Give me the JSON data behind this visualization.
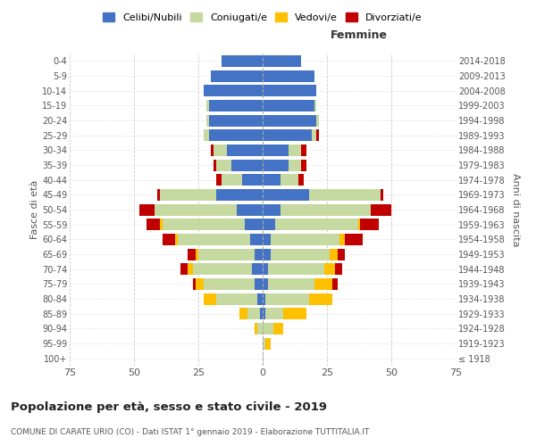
{
  "age_groups": [
    "100+",
    "95-99",
    "90-94",
    "85-89",
    "80-84",
    "75-79",
    "70-74",
    "65-69",
    "60-64",
    "55-59",
    "50-54",
    "45-49",
    "40-44",
    "35-39",
    "30-34",
    "25-29",
    "20-24",
    "15-19",
    "10-14",
    "5-9",
    "0-4"
  ],
  "birth_years": [
    "≤ 1918",
    "1919-1923",
    "1924-1928",
    "1929-1933",
    "1934-1938",
    "1939-1943",
    "1944-1948",
    "1949-1953",
    "1954-1958",
    "1959-1963",
    "1964-1968",
    "1969-1973",
    "1974-1978",
    "1979-1983",
    "1984-1988",
    "1989-1993",
    "1994-1998",
    "1999-2003",
    "2004-2008",
    "2009-2013",
    "2014-2018"
  ],
  "males": {
    "celibi": [
      0,
      0,
      0,
      1,
      2,
      3,
      4,
      3,
      5,
      7,
      10,
      18,
      8,
      12,
      14,
      21,
      21,
      21,
      23,
      20,
      16
    ],
    "coniugati": [
      0,
      0,
      2,
      5,
      16,
      20,
      23,
      22,
      28,
      32,
      32,
      22,
      8,
      6,
      5,
      2,
      1,
      1,
      0,
      0,
      0
    ],
    "vedovi": [
      0,
      0,
      1,
      3,
      5,
      3,
      2,
      1,
      1,
      1,
      0,
      0,
      0,
      0,
      0,
      0,
      0,
      0,
      0,
      0,
      0
    ],
    "divorziati": [
      0,
      0,
      0,
      0,
      0,
      1,
      3,
      3,
      5,
      5,
      6,
      1,
      2,
      1,
      1,
      0,
      0,
      0,
      0,
      0,
      0
    ]
  },
  "females": {
    "nubili": [
      0,
      0,
      0,
      1,
      1,
      2,
      2,
      3,
      3,
      5,
      7,
      18,
      7,
      10,
      10,
      19,
      21,
      20,
      21,
      20,
      15
    ],
    "coniugate": [
      0,
      1,
      4,
      7,
      17,
      18,
      22,
      23,
      27,
      32,
      35,
      28,
      7,
      5,
      5,
      2,
      1,
      1,
      0,
      0,
      0
    ],
    "vedove": [
      0,
      2,
      4,
      9,
      9,
      7,
      4,
      3,
      2,
      1,
      0,
      0,
      0,
      0,
      0,
      0,
      0,
      0,
      0,
      0,
      0
    ],
    "divorziate": [
      0,
      0,
      0,
      0,
      0,
      2,
      3,
      3,
      7,
      7,
      8,
      1,
      2,
      2,
      2,
      1,
      0,
      0,
      0,
      0,
      0
    ]
  },
  "colors": {
    "celibi": "#4472C4",
    "coniugati": "#c5d9a0",
    "vedovi": "#ffc000",
    "divorziati": "#c00000"
  },
  "xlim": 75,
  "title": "Popolazione per età, sesso e stato civile - 2019",
  "subtitle": "COMUNE DI CARATE URIO (CO) - Dati ISTAT 1° gennaio 2019 - Elaborazione TUTTITALIA.IT",
  "xlabel_right": "Femmine",
  "ylabel_left": "Fasce di età",
  "ylabel_right": "Anni di nascita",
  "legend_labels": [
    "Celibi/Nubili",
    "Coniugati/e",
    "Vedovi/e",
    "Divorziati/e"
  ],
  "bg_color": "#ffffff",
  "grid_color": "#cccccc",
  "tick_color": "#555555"
}
